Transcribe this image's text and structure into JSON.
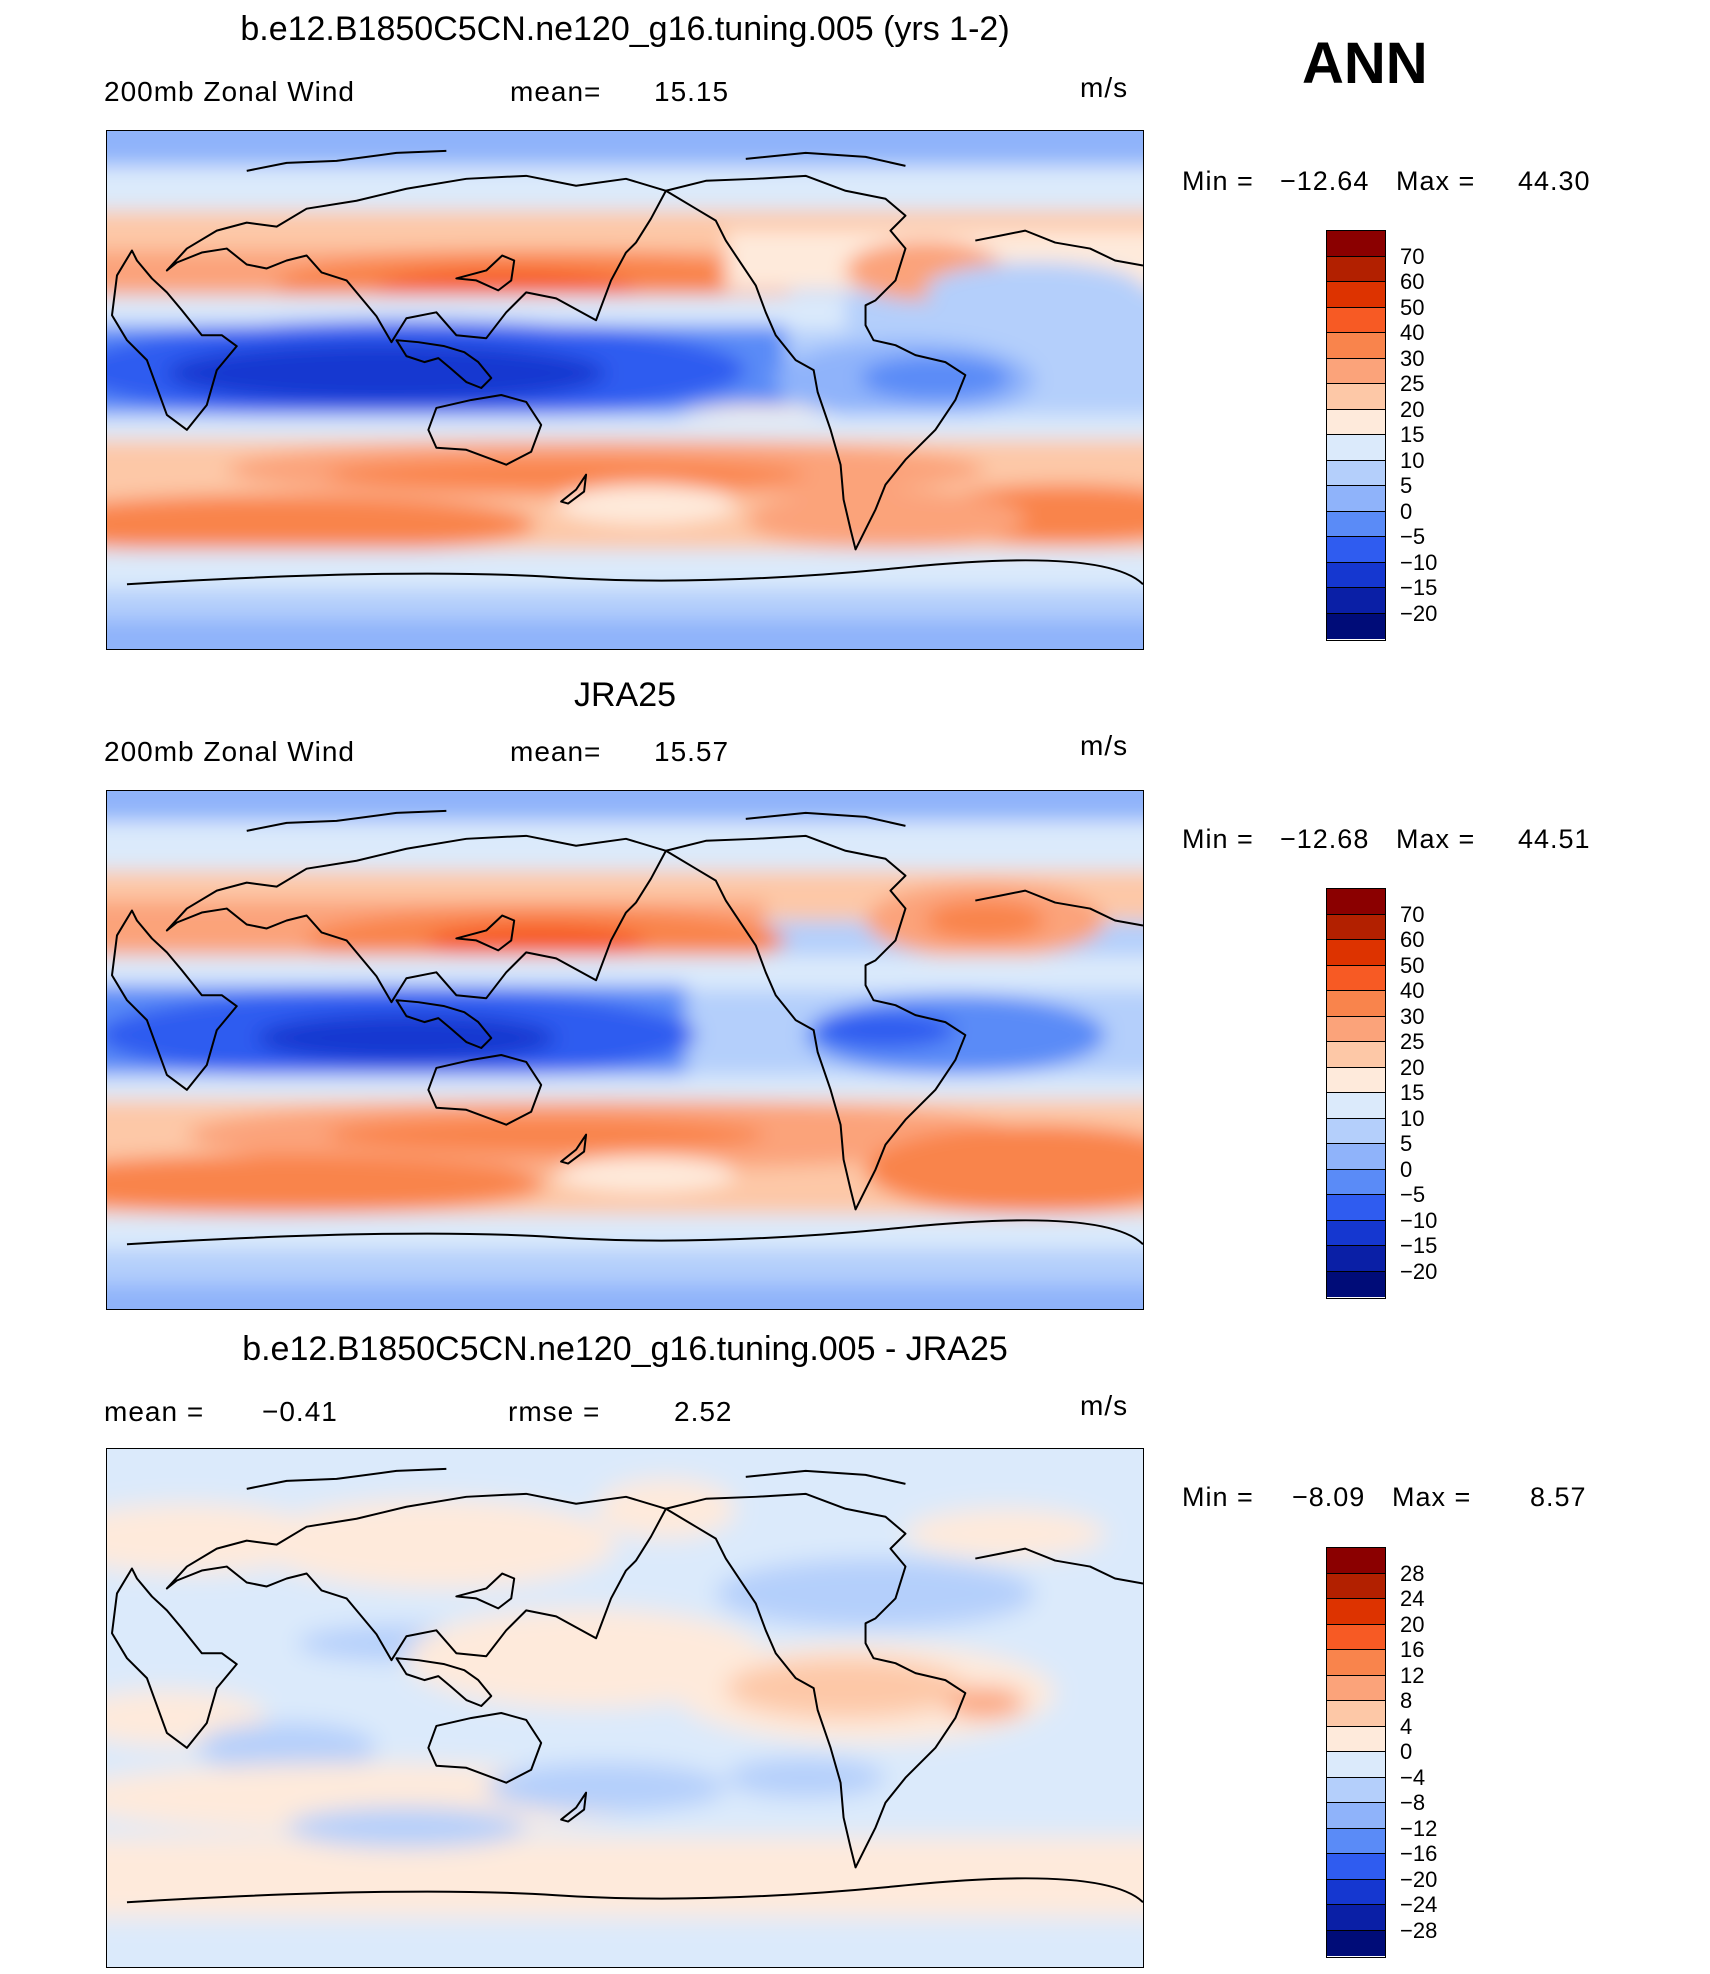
{
  "season": "ANN",
  "units": "m/s",
  "panels": [
    {
      "title": "b.e12.B1850C5CN.ne120_g16.tuning.005 (yrs 1-2)",
      "left_label": "200mb Zonal Wind",
      "stat_label": "mean=",
      "stat_value": "15.15",
      "min_label": "Min =",
      "min_value": "−12.64",
      "max_label": "Max =",
      "max_value": "44.30"
    },
    {
      "title": "JRA25",
      "left_label": "200mb Zonal Wind",
      "stat_label": "mean=",
      "stat_value": "15.57",
      "min_label": "Min =",
      "min_value": "−12.68",
      "max_label": "Max =",
      "max_value": "44.51"
    },
    {
      "title": "b.e12.B1850C5CN.ne120_g16.tuning.005 - JRA25",
      "left_label": "mean =",
      "left_value": "−0.41",
      "stat_label": "rmse =",
      "stat_value": "2.52",
      "min_label": "Min =",
      "min_value": "−8.09",
      "max_label": "Max =",
      "max_value": "8.57"
    }
  ],
  "colorbar_field": {
    "labels": [
      "70",
      "60",
      "50",
      "40",
      "30",
      "25",
      "20",
      "15",
      "10",
      "5",
      "0",
      "−5",
      "−10",
      "−15",
      "−20"
    ],
    "colors": [
      "#8b0000",
      "#b22000",
      "#dd3300",
      "#f75a24",
      "#f9844c",
      "#fba37a",
      "#fdc8a7",
      "#feeadb",
      "#dbeafb",
      "#b4cffb",
      "#8fb3fa",
      "#5a8bf7",
      "#2f5cf0",
      "#1537d0",
      "#0a1fa6",
      "#000c78"
    ]
  },
  "colorbar_diff": {
    "labels": [
      "28",
      "24",
      "20",
      "16",
      "12",
      "8",
      "4",
      "0",
      "−4",
      "−8",
      "−12",
      "−16",
      "−20",
      "−24",
      "−28"
    ],
    "colors": [
      "#8b0000",
      "#b22000",
      "#dd3300",
      "#f75a24",
      "#f9844c",
      "#fba37a",
      "#fdc8a7",
      "#feeadb",
      "#dbeafb",
      "#b4cffb",
      "#8fb3fa",
      "#5a8bf7",
      "#2f5cf0",
      "#1537d0",
      "#0a1fa6",
      "#000c78"
    ]
  }
}
